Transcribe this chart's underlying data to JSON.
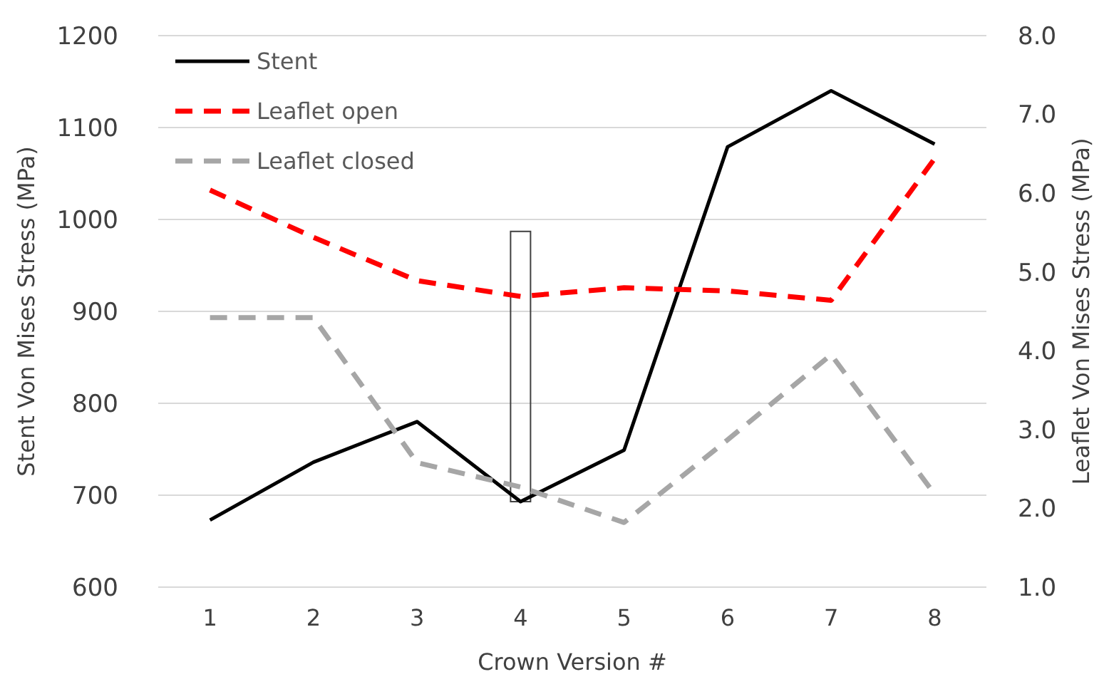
{
  "chart_data": {
    "type": "line",
    "xlabel": "Crown Version #",
    "ylabel": "Stent Von Mises Stress (MPa)",
    "y2label": "Leaflet Von Mises Stress (MPa)",
    "categories": [
      "1",
      "2",
      "3",
      "4",
      "5",
      "6",
      "7",
      "8"
    ],
    "series": [
      {
        "name": "Stent",
        "color": "#000000",
        "line_style": "solid",
        "values": [
          673,
          736,
          780,
          693,
          749,
          1079,
          1140,
          1082
        ]
      },
      {
        "name": "Leaflet open",
        "color": "#ff0000",
        "line_style": "dashed",
        "axis": "y2",
        "values": [
          6.04,
          5.44,
          4.89,
          4.69,
          4.8,
          4.76,
          4.64,
          6.44
        ]
      },
      {
        "name": "Leaflet closed",
        "color": "#a6a6a6",
        "line_style": "dashed",
        "axis": "y2",
        "values": [
          4.42,
          4.42,
          2.58,
          2.27,
          1.82,
          2.87,
          3.95,
          2.18
        ]
      }
    ],
    "ylim": [
      600,
      1200
    ],
    "yticks": [
      600,
      700,
      800,
      900,
      1000,
      1100,
      1200
    ],
    "y2lim": [
      1,
      8
    ],
    "y2ticks": [
      {
        "value": 1,
        "label": "1.0"
      },
      {
        "value": 2,
        "label": "2.0"
      },
      {
        "value": 3,
        "label": "3.0"
      },
      {
        "value": 4,
        "label": "4.0"
      },
      {
        "value": 5,
        "label": "5.0"
      },
      {
        "value": 6,
        "label": "6.0"
      },
      {
        "value": 7,
        "label": "7.0"
      },
      {
        "value": 8,
        "label": "8.0"
      }
    ],
    "grid": "y",
    "legend": "top left"
  }
}
